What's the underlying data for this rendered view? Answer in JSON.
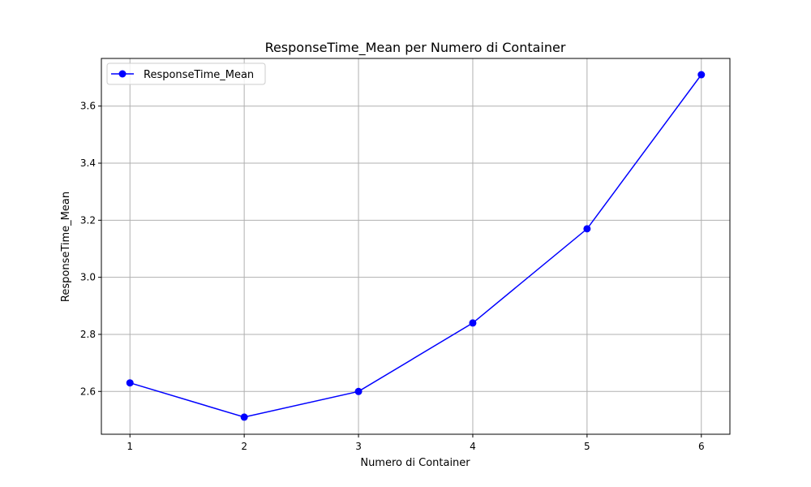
{
  "chart_data": {
    "type": "line",
    "title": "ResponseTime_Mean per Numero di Container",
    "xlabel": "Numero di Container",
    "ylabel": "ResponseTime_Mean",
    "x": [
      1,
      2,
      3,
      4,
      5,
      6
    ],
    "xticks": [
      "1",
      "2",
      "3",
      "4",
      "5",
      "6"
    ],
    "xlim": [
      0.75,
      6.25
    ],
    "ylim": [
      2.45,
      3.767
    ],
    "yticks": [
      "2.6",
      "2.8",
      "3.0",
      "3.2",
      "3.4",
      "3.6"
    ],
    "grid": true,
    "legend_position": "top-left",
    "series": [
      {
        "name": "ResponseTime_Mean",
        "color": "#0000ff",
        "marker": "circle",
        "values": [
          2.63,
          2.51,
          2.6,
          2.84,
          3.17,
          3.71
        ]
      }
    ]
  }
}
